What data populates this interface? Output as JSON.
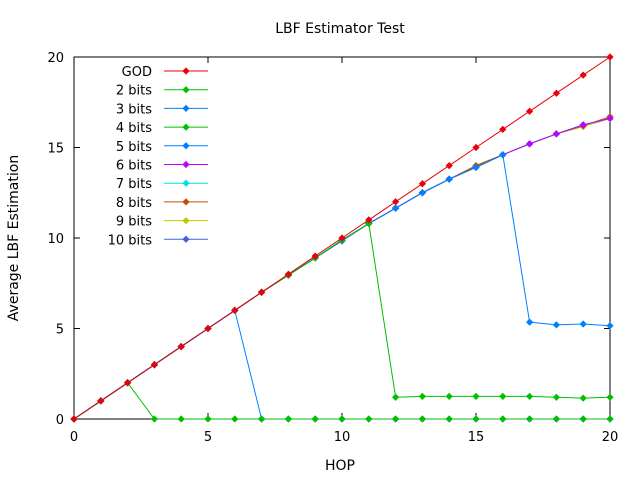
{
  "chart_data": {
    "type": "line",
    "title": "LBF Estimator Test",
    "xlabel": "HOP",
    "ylabel": "Average LBF Estimation",
    "xlim": [
      0,
      20
    ],
    "ylim": [
      0,
      20
    ],
    "xticks": [
      "0",
      "5",
      "10",
      "15",
      "20"
    ],
    "yticks": [
      "0",
      "5",
      "10",
      "15",
      "20"
    ],
    "grid": false,
    "legend_position": "top-left",
    "x": [
      0,
      1,
      2,
      3,
      4,
      5,
      6,
      7,
      8,
      9,
      10,
      11,
      12,
      13,
      14,
      15,
      16,
      17,
      18,
      19,
      20
    ],
    "series": [
      {
        "name": "GOD",
        "color": "#e8000b",
        "values": [
          0,
          1,
          2,
          3,
          4,
          5,
          6,
          7,
          8,
          9,
          10,
          11,
          12,
          13,
          14,
          15,
          16,
          17,
          18,
          19,
          20
        ]
      },
      {
        "name": "2 bits",
        "color": "#00c000",
        "values": [
          0,
          1,
          2,
          0,
          0,
          0,
          0,
          0,
          0,
          0,
          0,
          0,
          0,
          0,
          0,
          0,
          0,
          0,
          0,
          0,
          0
        ]
      },
      {
        "name": "3 bits",
        "color": "#0080ff",
        "values": [
          0,
          1,
          2,
          3,
          4,
          5,
          6,
          0,
          0,
          0,
          0,
          0,
          0,
          0,
          0,
          0,
          0,
          0,
          0,
          0,
          0
        ]
      },
      {
        "name": "4 bits",
        "color": "#00c000",
        "values": [
          0,
          1,
          2,
          3,
          4,
          5,
          6,
          7,
          7.95,
          8.9,
          9.9,
          10.8,
          1.2,
          1.25,
          1.25,
          1.25,
          1.25,
          1.25,
          1.2,
          1.15,
          1.2
        ]
      },
      {
        "name": "5 bits",
        "color": "#0080ff",
        "values": [
          0,
          1,
          2,
          3,
          4,
          5,
          6,
          7,
          7.95,
          8.9,
          9.85,
          10.8,
          11.65,
          12.5,
          13.25,
          13.9,
          14.6,
          5.35,
          5.2,
          5.25,
          5.15
        ]
      },
      {
        "name": "6 bits",
        "color": "#c000ff",
        "values": [
          0,
          1,
          2,
          3,
          4,
          5,
          6,
          7,
          7.95,
          8.9,
          9.85,
          10.8,
          11.65,
          12.5,
          13.25,
          13.9,
          14.6,
          15.2,
          15.75,
          16.25,
          16.6
        ]
      },
      {
        "name": "7 bits",
        "color": "#00e0e0",
        "values": [
          0,
          1,
          2,
          3,
          4,
          5,
          6,
          7,
          7.95,
          8.9,
          9.85,
          10.8,
          11.65,
          12.5,
          13.25,
          13.9,
          14.6,
          15.2,
          15.75,
          16.25,
          16.6
        ]
      },
      {
        "name": "8 bits",
        "color": "#c05000",
        "values": [
          0,
          1,
          2,
          3,
          4,
          5,
          6,
          7,
          7.95,
          8.9,
          9.85,
          10.8,
          11.65,
          12.5,
          13.25,
          14.0,
          14.6,
          15.2,
          15.75,
          16.2,
          16.7
        ]
      },
      {
        "name": "9 bits",
        "color": "#c8c800",
        "values": [
          0,
          1,
          2,
          3,
          4,
          5,
          6,
          7,
          7.95,
          8.9,
          9.85,
          10.8,
          11.65,
          12.5,
          13.25,
          14.0,
          14.6,
          15.2,
          15.75,
          16.15,
          16.6
        ]
      },
      {
        "name": "10 bits",
        "color": "#4060e0",
        "values": [
          0,
          1,
          2,
          3,
          4,
          5,
          6,
          7,
          7.95,
          8.9,
          9.85,
          10.8,
          11.65,
          12.5,
          13.25,
          13.95,
          14.6,
          15.2,
          15.75,
          16.25,
          16.6
        ]
      }
    ]
  }
}
